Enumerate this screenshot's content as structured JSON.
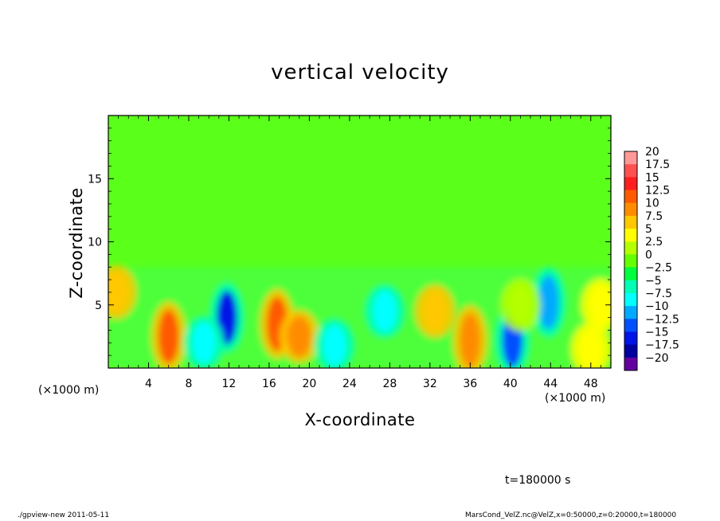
{
  "chart_data": {
    "type": "heatmap",
    "title": "vertical velocity",
    "xlabel": "X-coordinate",
    "ylabel": "Z-coordinate",
    "x_unit": "(×1000 m)",
    "xlim": [
      0,
      50
    ],
    "ylim": [
      0,
      20
    ],
    "x_ticks": [
      4,
      8,
      12,
      16,
      20,
      24,
      28,
      32,
      36,
      40,
      44,
      48
    ],
    "y_ticks": [
      5,
      10,
      15
    ],
    "colorbar": {
      "levels": [
        "20",
        "17.5",
        "15",
        "12.5",
        "10",
        "7.5",
        "5",
        "2.5",
        "0",
        "−2.5",
        "−5",
        "−7.5",
        "−10",
        "−12.5",
        "−15",
        "−17.5",
        "−20"
      ],
      "colors": [
        "#ff9999",
        "#ff5050",
        "#ff1e1e",
        "#ff5a00",
        "#ff8c00",
        "#ffc800",
        "#ffff00",
        "#b4ff00",
        "#64ff00",
        "#00ff3c",
        "#00ffb4",
        "#00ffff",
        "#00aaff",
        "#0050ff",
        "#0014e6",
        "#0000a0",
        "#6400a0"
      ]
    },
    "features": [
      {
        "x": 6,
        "z": 2.5,
        "w": 12
      },
      {
        "x": 11.8,
        "z": 4,
        "w": -15
      },
      {
        "x": 9.5,
        "z": 2,
        "w": -7
      },
      {
        "x": 16.8,
        "z": 3.5,
        "w": 12
      },
      {
        "x": 19,
        "z": 2.5,
        "w": 9
      },
      {
        "x": 22.5,
        "z": 1.8,
        "w": -8
      },
      {
        "x": 27.5,
        "z": 4.5,
        "w": -8
      },
      {
        "x": 32.5,
        "z": 4.5,
        "w": 8
      },
      {
        "x": 36,
        "z": 2.2,
        "w": 10
      },
      {
        "x": 40.2,
        "z": 2.2,
        "w": -12
      },
      {
        "x": 43.8,
        "z": 5.2,
        "w": -11
      },
      {
        "x": 0.8,
        "z": 6,
        "w": 8
      },
      {
        "x": 49,
        "z": 5,
        "w": 6
      },
      {
        "x": 48,
        "z": 1.5,
        "w": 5
      },
      {
        "x": 41,
        "z": 5,
        "w": 3
      }
    ]
  },
  "annotations": {
    "time": "t=180000 s",
    "footer_left": "./gpview-new  2011-05-11",
    "footer_right": "MarsCond_VelZ.nc@VelZ,x=0:50000,z=0:20000,t=180000"
  }
}
